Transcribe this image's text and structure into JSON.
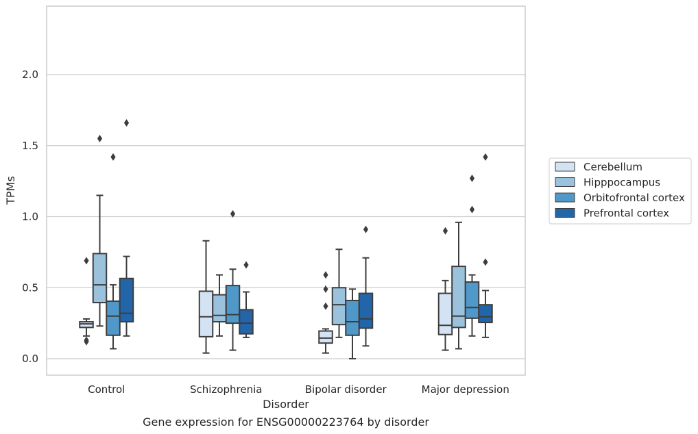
{
  "chart_data": {
    "type": "box",
    "title": "",
    "caption": "Gene expression for ENSG00000223764 by disorder",
    "xlabel": "Disorder",
    "ylabel": "TPMs",
    "ylim": [
      -0.11,
      2.48
    ],
    "yticks": [
      "0.0",
      "0.5",
      "1.0",
      "1.5",
      "2.0"
    ],
    "grid": "horizontal",
    "legend_position": "right",
    "categories": [
      "Control",
      "Schizophrenia",
      "Bipolar disorder",
      "Major depression"
    ],
    "series": [
      {
        "name": "Cerebellum",
        "color": "#d4e3f3",
        "boxes": [
          {
            "whisker_low": 0.16,
            "q1": 0.22,
            "median": 0.245,
            "q3": 0.26,
            "whisker_high": 0.28,
            "outliers": [
              0.69,
              0.13,
              0.12
            ]
          },
          {
            "whisker_low": 0.04,
            "q1": 0.155,
            "median": 0.295,
            "q3": 0.475,
            "whisker_high": 0.83,
            "outliers": []
          },
          {
            "whisker_low": 0.04,
            "q1": 0.11,
            "median": 0.145,
            "q3": 0.195,
            "whisker_high": 0.21,
            "outliers": [
              0.59,
              0.49,
              0.37
            ]
          },
          {
            "whisker_low": 0.06,
            "q1": 0.17,
            "median": 0.235,
            "q3": 0.46,
            "whisker_high": 0.55,
            "outliers": [
              0.9
            ]
          }
        ]
      },
      {
        "name": "Hipppocampus",
        "color": "#9ac2dc",
        "boxes": [
          {
            "whisker_low": 0.23,
            "q1": 0.395,
            "median": 0.52,
            "q3": 0.74,
            "whisker_high": 1.15,
            "outliers": [
              1.55
            ]
          },
          {
            "whisker_low": 0.16,
            "q1": 0.26,
            "median": 0.305,
            "q3": 0.45,
            "whisker_high": 0.59,
            "outliers": []
          },
          {
            "whisker_low": 0.15,
            "q1": 0.24,
            "median": 0.38,
            "q3": 0.5,
            "whisker_high": 0.77,
            "outliers": []
          },
          {
            "whisker_low": 0.07,
            "q1": 0.22,
            "median": 0.3,
            "q3": 0.65,
            "whisker_high": 0.96,
            "outliers": []
          }
        ]
      },
      {
        "name": "Orbitofrontal cortex",
        "color": "#5098c9",
        "boxes": [
          {
            "whisker_low": 0.07,
            "q1": 0.165,
            "median": 0.3,
            "q3": 0.405,
            "whisker_high": 0.52,
            "outliers": [
              1.42
            ]
          },
          {
            "whisker_low": 0.06,
            "q1": 0.25,
            "median": 0.31,
            "q3": 0.515,
            "whisker_high": 0.63,
            "outliers": [
              1.02
            ]
          },
          {
            "whisker_low": 0.0,
            "q1": 0.165,
            "median": 0.26,
            "q3": 0.41,
            "whisker_high": 0.49,
            "outliers": []
          },
          {
            "whisker_low": 0.16,
            "q1": 0.285,
            "median": 0.36,
            "q3": 0.54,
            "whisker_high": 0.59,
            "outliers": [
              1.27,
              1.05
            ]
          }
        ]
      },
      {
        "name": "Prefrontal cortex",
        "color": "#2265a9",
        "boxes": [
          {
            "whisker_low": 0.16,
            "q1": 0.26,
            "median": 0.32,
            "q3": 0.565,
            "whisker_high": 0.72,
            "outliers": [
              1.66
            ]
          },
          {
            "whisker_low": 0.15,
            "q1": 0.175,
            "median": 0.25,
            "q3": 0.345,
            "whisker_high": 0.47,
            "outliers": [
              0.66
            ]
          },
          {
            "whisker_low": 0.09,
            "q1": 0.215,
            "median": 0.28,
            "q3": 0.46,
            "whisker_high": 0.71,
            "outliers": [
              0.91
            ]
          },
          {
            "whisker_low": 0.15,
            "q1": 0.255,
            "median": 0.295,
            "q3": 0.38,
            "whisker_high": 0.48,
            "outliers": [
              1.42,
              0.68
            ]
          }
        ]
      }
    ]
  }
}
